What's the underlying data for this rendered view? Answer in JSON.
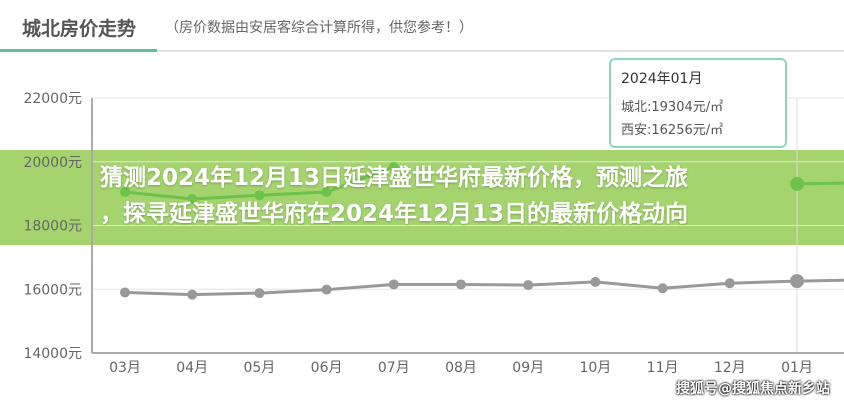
{
  "header": {
    "title": "城北房价走势",
    "subtitle": "（房价数据由安居客综合计算所得，供您参考！）"
  },
  "chart_data": {
    "type": "line",
    "categories": [
      "03月",
      "04月",
      "05月",
      "06月",
      "07月",
      "08月",
      "09月",
      "10月",
      "11月",
      "12月",
      "01月"
    ],
    "ylim": [
      14000,
      22000
    ],
    "yticks": [
      "14000元",
      "16000元",
      "18000元",
      "20000元",
      "22000元"
    ],
    "grid": true,
    "series": [
      {
        "name": "城北",
        "color": "#6cc24a",
        "values": [
          19050,
          18830,
          18950,
          19050,
          19840,
          null,
          null,
          null,
          null,
          null,
          19304
        ]
      },
      {
        "name": "西安",
        "color": "#999999",
        "values": [
          15900,
          15830,
          15880,
          15990,
          16150,
          16150,
          16130,
          16230,
          16030,
          16190,
          16256
        ]
      }
    ],
    "tooltip": {
      "date": "2024年01月",
      "rows": [
        "城北:19304元/㎡",
        "西安:16256元/㎡"
      ]
    }
  },
  "banner": {
    "line1": "猜测2024年12月13日延津盛世华府最新价格，预测之旅",
    "line2": "，探寻延津盛世华府在2024年12月13日的最新价格动向"
  },
  "watermark": "搜狐号@搜狐焦点新乡站"
}
